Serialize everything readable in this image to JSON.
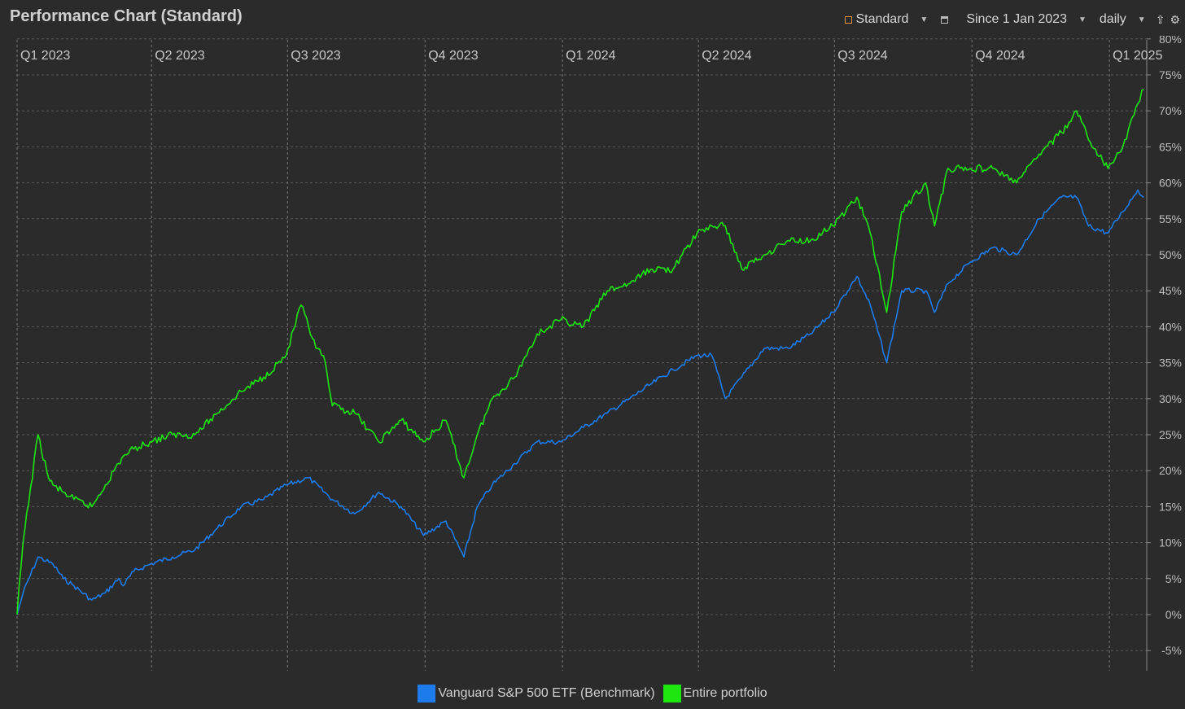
{
  "title": "Performance Chart (Standard)",
  "toolbar": {
    "view_label": "Standard",
    "range_label": "Since 1 Jan 2023",
    "interval_label": "daily"
  },
  "icons": {
    "export": "export-icon",
    "settings": "gear-icon"
  },
  "colors": {
    "background": "#2b2b2b",
    "benchmark": "#1e7bec",
    "portfolio": "#1ee60f"
  },
  "chart_data": {
    "type": "line",
    "x_labels": [
      "Q1 2023",
      "Q2 2023",
      "Q3 2023",
      "Q4 2023",
      "Q1 2024",
      "Q2 2024",
      "Q3 2024",
      "Q4 2024",
      "Q1 2025"
    ],
    "y_ticks": [
      "80%",
      "75%",
      "70%",
      "65%",
      "60%",
      "55%",
      "50%",
      "45%",
      "40%",
      "35%",
      "30%",
      "25%",
      "20%",
      "15%",
      "10%",
      "5%",
      "0%",
      "-5%"
    ],
    "ylim": [
      -7,
      80
    ],
    "grid": true,
    "legend_position": "bottom-center",
    "series": [
      {
        "name": "Vanguard S&P 500 ETF (Benchmark)",
        "x": [
          "2023-01-01",
          "2023-01-05",
          "2023-01-15",
          "2023-01-25",
          "2023-02-01",
          "2023-02-08",
          "2023-02-20",
          "2023-03-01",
          "2023-03-10",
          "2023-03-13",
          "2023-03-20",
          "2023-03-31",
          "2023-04-15",
          "2023-04-30",
          "2023-05-15",
          "2023-05-31",
          "2023-06-15",
          "2023-06-30",
          "2023-07-15",
          "2023-07-31",
          "2023-08-15",
          "2023-08-31",
          "2023-09-15",
          "2023-09-30",
          "2023-10-15",
          "2023-10-27",
          "2023-11-05",
          "2023-11-15",
          "2023-11-30",
          "2023-12-15",
          "2023-12-31",
          "2024-01-15",
          "2024-01-31",
          "2024-02-15",
          "2024-02-29",
          "2024-03-15",
          "2024-03-31",
          "2024-04-10",
          "2024-04-19",
          "2024-04-30",
          "2024-05-15",
          "2024-05-31",
          "2024-06-15",
          "2024-06-30",
          "2024-07-16",
          "2024-07-25",
          "2024-08-05",
          "2024-08-15",
          "2024-08-31",
          "2024-09-06",
          "2024-09-15",
          "2024-09-30",
          "2024-10-15",
          "2024-10-31",
          "2024-11-15",
          "2024-11-30",
          "2024-12-10",
          "2024-12-18",
          "2024-12-31",
          "2025-01-10",
          "2025-01-20",
          "2025-01-24"
        ],
        "values": [
          0,
          3,
          8,
          7,
          5,
          4,
          2,
          3,
          5,
          4,
          6,
          7,
          8,
          9,
          12,
          15,
          16,
          18,
          19,
          16,
          14,
          17,
          15,
          11,
          13,
          8,
          15,
          18,
          21,
          24,
          24,
          26,
          28,
          30,
          32,
          34,
          36,
          36,
          30,
          33,
          37,
          37,
          39,
          42,
          47,
          43,
          35,
          45,
          45,
          42,
          46,
          49,
          51,
          50,
          55,
          58,
          58,
          54,
          53,
          56,
          59,
          58
        ]
      },
      {
        "name": "Entire portfolio",
        "x": [
          "2023-01-01",
          "2023-01-05",
          "2023-01-15",
          "2023-01-22",
          "2023-01-25",
          "2023-02-01",
          "2023-02-08",
          "2023-02-20",
          "2023-03-01",
          "2023-03-10",
          "2023-03-13",
          "2023-03-20",
          "2023-03-31",
          "2023-04-15",
          "2023-04-30",
          "2023-05-15",
          "2023-05-31",
          "2023-06-15",
          "2023-06-30",
          "2023-07-10",
          "2023-07-20",
          "2023-07-25",
          "2023-07-31",
          "2023-08-15",
          "2023-08-31",
          "2023-09-15",
          "2023-09-30",
          "2023-10-15",
          "2023-10-27",
          "2023-11-05",
          "2023-11-15",
          "2023-11-30",
          "2023-12-15",
          "2023-12-31",
          "2024-01-15",
          "2024-01-31",
          "2024-02-15",
          "2024-02-29",
          "2024-03-15",
          "2024-03-31",
          "2024-04-10",
          "2024-04-19",
          "2024-04-30",
          "2024-05-15",
          "2024-05-31",
          "2024-06-15",
          "2024-06-30",
          "2024-07-16",
          "2024-07-25",
          "2024-08-05",
          "2024-08-15",
          "2024-08-31",
          "2024-09-06",
          "2024-09-15",
          "2024-09-30",
          "2024-10-15",
          "2024-10-31",
          "2024-11-15",
          "2024-11-30",
          "2024-12-10",
          "2024-12-18",
          "2024-12-31",
          "2025-01-10",
          "2025-01-20",
          "2025-01-24"
        ],
        "values": [
          0,
          10,
          25,
          19,
          18,
          17,
          16,
          15,
          18,
          21,
          22,
          23,
          24,
          25,
          25,
          28,
          31,
          33,
          36,
          43,
          37,
          36,
          29,
          28,
          24,
          27,
          24,
          27,
          19,
          25,
          30,
          33,
          39,
          41,
          40,
          45,
          46,
          48,
          48,
          53,
          54,
          54,
          48,
          50,
          52,
          52,
          54,
          58,
          53,
          42,
          56,
          60,
          54,
          62,
          62,
          62,
          60,
          64,
          67,
          70,
          66,
          62,
          65,
          71,
          73
        ]
      }
    ]
  }
}
